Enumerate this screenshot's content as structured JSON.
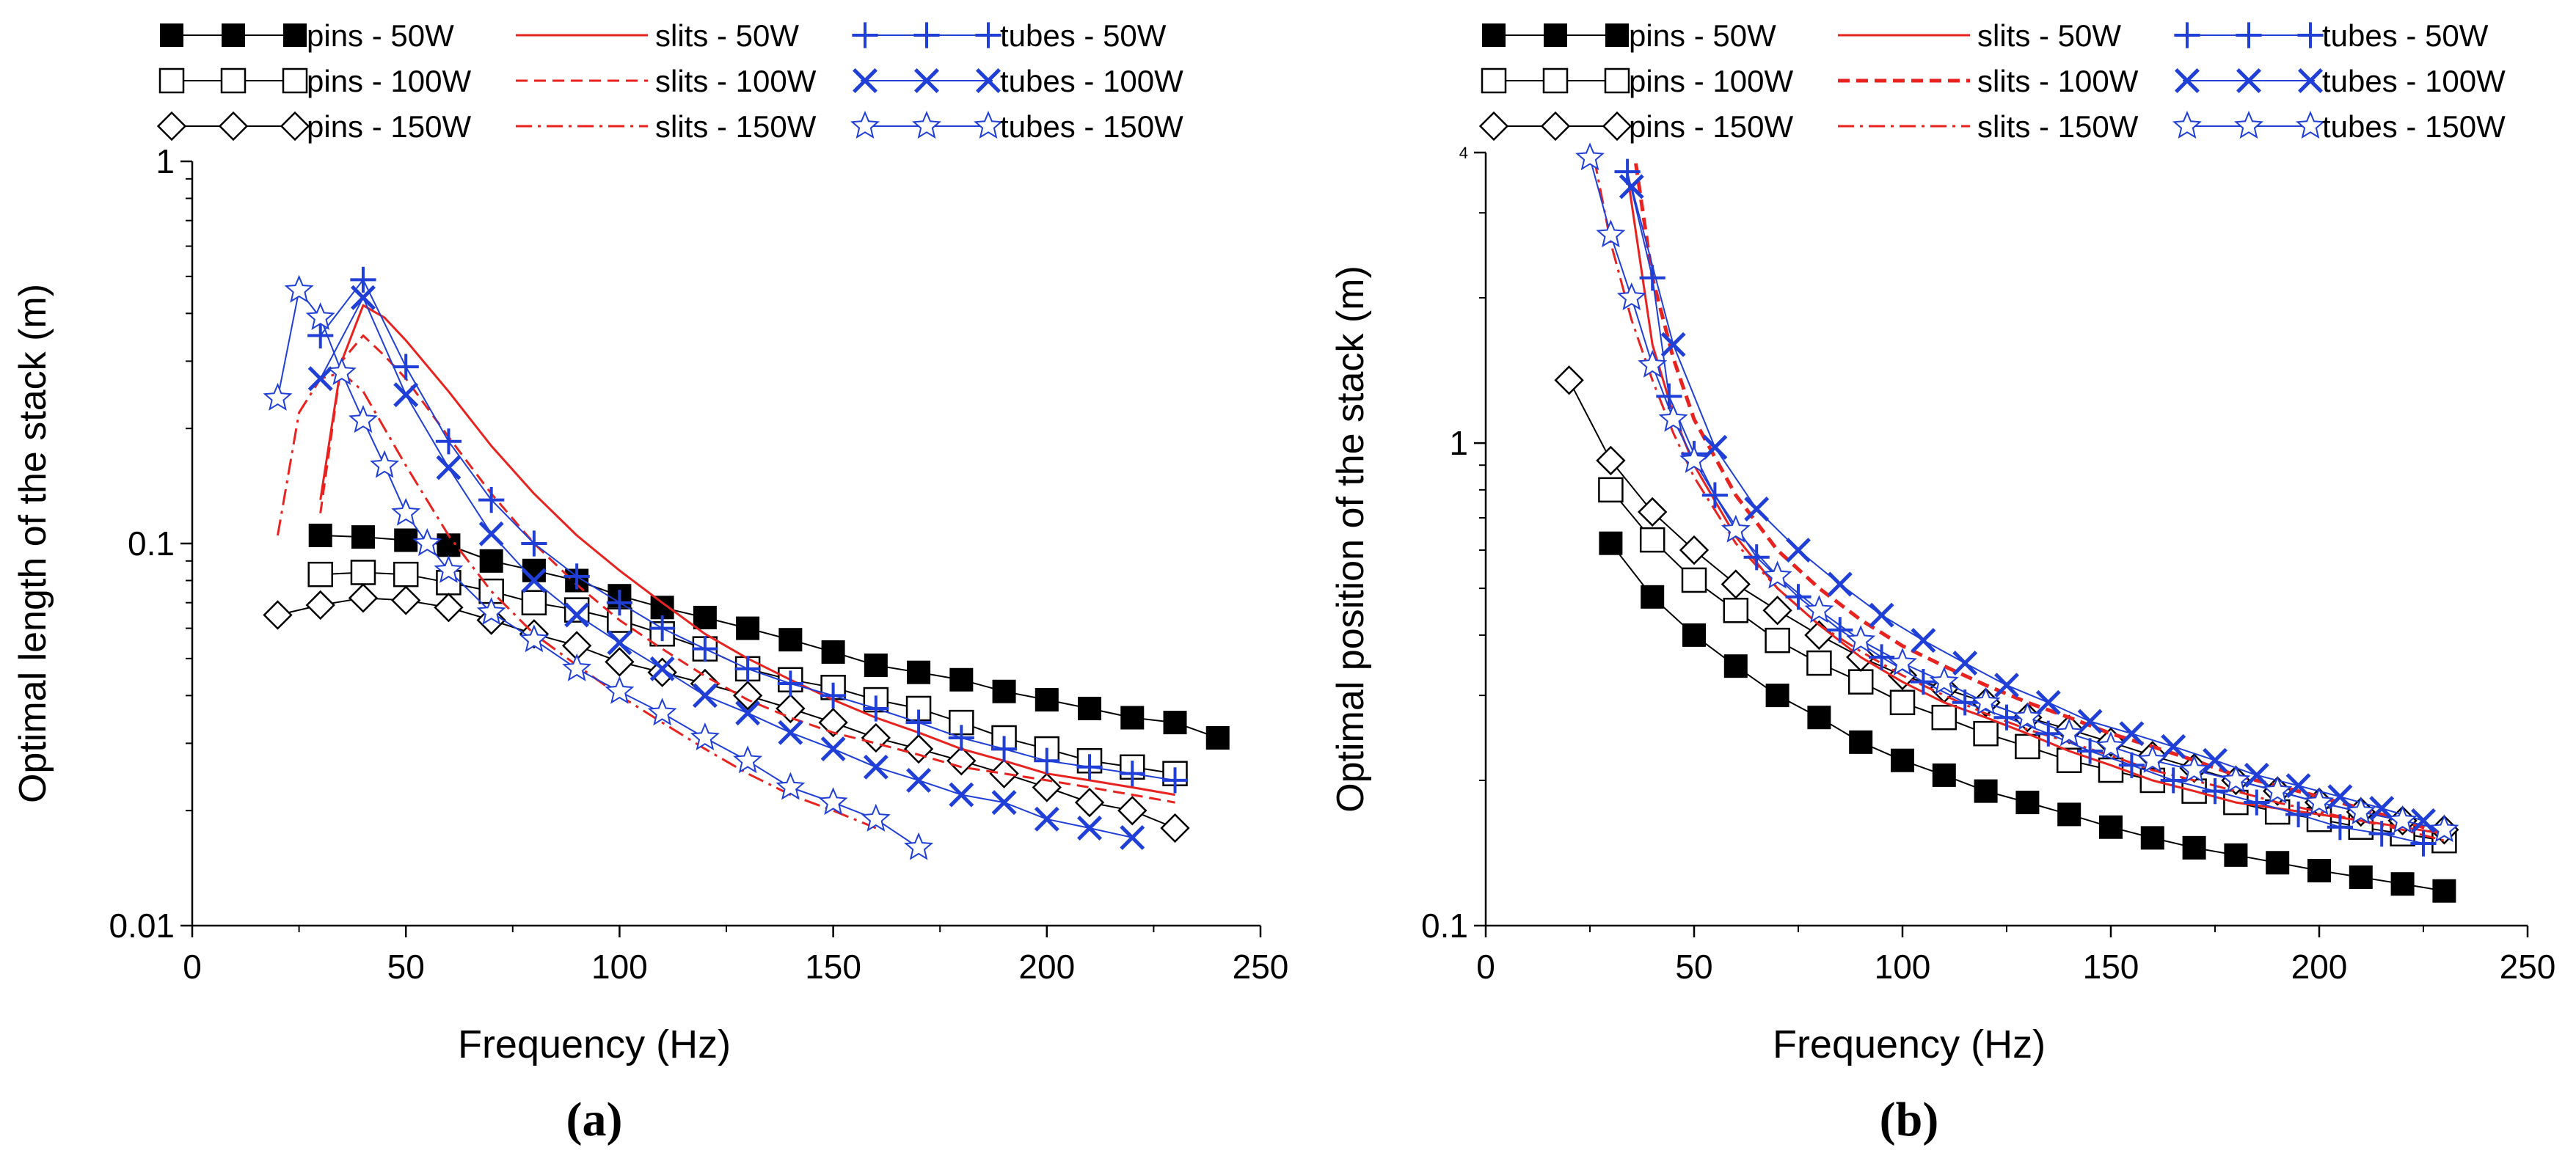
{
  "chart_data": [
    {
      "type": "line",
      "panel_label": "(a)",
      "xlabel": "Frequency (Hz)",
      "ylabel": "Optimal length of the stack (m)",
      "xlim": [
        0,
        250
      ],
      "ylim": [
        0.01,
        1
      ],
      "yscale": "log",
      "x_ticks": [
        "0",
        "50",
        "100",
        "150",
        "200",
        "250"
      ],
      "y_ticks": [
        "0.01",
        "0.1",
        "1"
      ],
      "legend_position": "top",
      "series": [
        {
          "name": "pins - 50W",
          "color": "#000000",
          "marker": "filled-square",
          "x": [
            30,
            40,
            50,
            60,
            70,
            80,
            90,
            100,
            110,
            120,
            130,
            140,
            150,
            160,
            170,
            180,
            190,
            200,
            210,
            220,
            230,
            240
          ],
          "y": [
            0.105,
            0.104,
            0.102,
            0.099,
            0.09,
            0.085,
            0.08,
            0.073,
            0.068,
            0.064,
            0.06,
            0.056,
            0.052,
            0.048,
            0.046,
            0.044,
            0.041,
            0.039,
            0.037,
            0.035,
            0.034,
            0.031
          ]
        },
        {
          "name": "pins - 100W",
          "color": "#000000",
          "marker": "open-square",
          "x": [
            30,
            40,
            50,
            60,
            70,
            80,
            90,
            100,
            110,
            120,
            130,
            140,
            150,
            160,
            170,
            180,
            190,
            200,
            210,
            220,
            230
          ],
          "y": [
            0.083,
            0.084,
            0.083,
            0.079,
            0.075,
            0.07,
            0.067,
            0.063,
            0.058,
            0.053,
            0.047,
            0.044,
            0.042,
            0.039,
            0.037,
            0.034,
            0.031,
            0.029,
            0.027,
            0.026,
            0.025
          ]
        },
        {
          "name": "pins - 150W",
          "color": "#000000",
          "marker": "open-diamond",
          "x": [
            20,
            30,
            40,
            50,
            60,
            70,
            80,
            90,
            100,
            110,
            120,
            130,
            140,
            150,
            160,
            170,
            180,
            190,
            200,
            210,
            220,
            230
          ],
          "y": [
            0.065,
            0.069,
            0.072,
            0.071,
            0.068,
            0.063,
            0.058,
            0.054,
            0.049,
            0.046,
            0.043,
            0.04,
            0.037,
            0.034,
            0.031,
            0.029,
            0.027,
            0.025,
            0.023,
            0.021,
            0.02,
            0.018
          ]
        },
        {
          "name": "slits - 50W",
          "color": "#e8231f",
          "marker": "none",
          "dash": "solid",
          "x": [
            30,
            35,
            40,
            45,
            50,
            60,
            70,
            80,
            90,
            100,
            110,
            120,
            130,
            140,
            150,
            160,
            170,
            180,
            190,
            200,
            210,
            220,
            230
          ],
          "y": [
            0.13,
            0.3,
            0.42,
            0.39,
            0.34,
            0.25,
            0.18,
            0.135,
            0.105,
            0.085,
            0.07,
            0.058,
            0.05,
            0.044,
            0.039,
            0.035,
            0.032,
            0.029,
            0.027,
            0.025,
            0.024,
            0.023,
            0.022
          ]
        },
        {
          "name": "slits - 100W",
          "color": "#e8231f",
          "marker": "none",
          "dash": "dashed",
          "x": [
            30,
            35,
            40,
            45,
            50,
            60,
            70,
            80,
            90,
            100,
            110,
            120,
            130,
            140,
            150,
            160,
            170,
            180,
            190,
            200,
            210,
            220,
            230
          ],
          "y": [
            0.12,
            0.3,
            0.35,
            0.31,
            0.27,
            0.19,
            0.135,
            0.1,
            0.078,
            0.063,
            0.053,
            0.045,
            0.039,
            0.035,
            0.032,
            0.03,
            0.028,
            0.026,
            0.025,
            0.024,
            0.023,
            0.022,
            0.021
          ]
        },
        {
          "name": "slits - 150W",
          "color": "#e8231f",
          "marker": "none",
          "dash": "dashdot",
          "x": [
            20,
            25,
            30,
            35,
            40,
            45,
            50,
            60,
            70,
            80,
            90,
            100,
            110,
            120,
            130,
            140,
            150,
            160
          ],
          "y": [
            0.105,
            0.22,
            0.27,
            0.28,
            0.25,
            0.2,
            0.16,
            0.105,
            0.075,
            0.058,
            0.048,
            0.04,
            0.034,
            0.029,
            0.025,
            0.022,
            0.02,
            0.018
          ]
        },
        {
          "name": "tubes - 50W",
          "color": "#1f3fd6",
          "marker": "plus",
          "x": [
            30,
            40,
            50,
            60,
            70,
            80,
            90,
            100,
            110,
            120,
            130,
            140,
            150,
            160,
            170,
            180,
            190,
            200,
            210,
            220,
            230
          ],
          "y": [
            0.35,
            0.49,
            0.29,
            0.185,
            0.13,
            0.1,
            0.082,
            0.07,
            0.06,
            0.053,
            0.047,
            0.043,
            0.04,
            0.037,
            0.034,
            0.031,
            0.029,
            0.027,
            0.026,
            0.025,
            0.024
          ]
        },
        {
          "name": "tubes - 100W",
          "color": "#1f3fd6",
          "marker": "cross",
          "x": [
            30,
            40,
            50,
            60,
            70,
            80,
            90,
            100,
            110,
            120,
            130,
            140,
            150,
            160,
            170,
            180,
            190,
            200,
            210,
            220
          ],
          "y": [
            0.27,
            0.44,
            0.245,
            0.158,
            0.106,
            0.08,
            0.065,
            0.055,
            0.047,
            0.04,
            0.036,
            0.032,
            0.029,
            0.026,
            0.024,
            0.022,
            0.021,
            0.019,
            0.018,
            0.017
          ]
        },
        {
          "name": "tubes - 150W",
          "color": "#1f3fd6",
          "marker": "star",
          "x": [
            20,
            25,
            30,
            35,
            40,
            45,
            50,
            55,
            60,
            70,
            80,
            90,
            100,
            110,
            120,
            130,
            140,
            150,
            160,
            170
          ],
          "y": [
            0.24,
            0.46,
            0.39,
            0.28,
            0.21,
            0.16,
            0.12,
            0.1,
            0.085,
            0.066,
            0.056,
            0.047,
            0.041,
            0.036,
            0.031,
            0.027,
            0.023,
            0.021,
            0.019,
            0.016
          ]
        }
      ]
    },
    {
      "type": "line",
      "panel_label": "(b)",
      "xlabel": "Frequency (Hz)",
      "ylabel": "Optimal position of the stack (m)",
      "xlim": [
        0,
        250
      ],
      "ylim": [
        0.1,
        4
      ],
      "yscale": "log",
      "x_ticks": [
        "0",
        "50",
        "100",
        "150",
        "200",
        "250"
      ],
      "y_ticks": [
        "0.1",
        "1",
        "4"
      ],
      "legend_position": "top",
      "series": [
        {
          "name": "pins - 50W",
          "color": "#000000",
          "marker": "filled-square",
          "x": [
            30,
            40,
            50,
            60,
            70,
            80,
            90,
            100,
            110,
            120,
            130,
            140,
            150,
            160,
            170,
            180,
            190,
            200,
            210,
            220,
            230
          ],
          "y": [
            0.62,
            0.48,
            0.4,
            0.345,
            0.3,
            0.27,
            0.24,
            0.22,
            0.205,
            0.19,
            0.18,
            0.17,
            0.16,
            0.152,
            0.145,
            0.14,
            0.135,
            0.13,
            0.126,
            0.122,
            0.118
          ]
        },
        {
          "name": "pins - 100W",
          "color": "#000000",
          "marker": "open-square",
          "x": [
            30,
            40,
            50,
            60,
            70,
            80,
            90,
            100,
            110,
            120,
            130,
            140,
            150,
            160,
            170,
            180,
            190,
            200,
            210,
            220,
            230
          ],
          "y": [
            0.8,
            0.63,
            0.52,
            0.45,
            0.39,
            0.35,
            0.32,
            0.29,
            0.27,
            0.25,
            0.235,
            0.22,
            0.21,
            0.2,
            0.19,
            0.18,
            0.172,
            0.166,
            0.16,
            0.155,
            0.15
          ]
        },
        {
          "name": "pins - 150W",
          "color": "#000000",
          "marker": "open-diamond",
          "x": [
            20,
            30,
            40,
            50,
            60,
            70,
            80,
            90,
            100,
            110,
            120,
            130,
            140,
            150,
            160,
            170,
            180,
            190,
            200,
            210,
            220,
            230
          ],
          "y": [
            1.35,
            0.92,
            0.72,
            0.6,
            0.51,
            0.45,
            0.4,
            0.36,
            0.33,
            0.31,
            0.29,
            0.27,
            0.255,
            0.24,
            0.225,
            0.212,
            0.2,
            0.19,
            0.18,
            0.172,
            0.165,
            0.158
          ]
        },
        {
          "name": "slits - 50W",
          "color": "#e8231f",
          "marker": "none",
          "dash": "solid",
          "x": [
            34,
            40,
            45,
            50,
            60,
            70,
            80,
            90,
            100,
            110,
            120,
            130,
            140,
            150,
            160,
            170,
            180,
            190,
            200,
            210,
            220,
            230
          ],
          "y": [
            3.6,
            1.6,
            1.15,
            0.9,
            0.64,
            0.5,
            0.42,
            0.36,
            0.32,
            0.29,
            0.27,
            0.25,
            0.23,
            0.215,
            0.2,
            0.19,
            0.18,
            0.175,
            0.17,
            0.165,
            0.16,
            0.155
          ]
        },
        {
          "name": "slits - 100W",
          "color": "#e8231f",
          "marker": "none",
          "dash": "dashed",
          "x": [
            36,
            40,
            45,
            50,
            60,
            70,
            80,
            90,
            100,
            110,
            120,
            130,
            140,
            150,
            160,
            170,
            180,
            190,
            200,
            210,
            220,
            230
          ],
          "y": [
            3.8,
            2.2,
            1.5,
            1.12,
            0.78,
            0.6,
            0.5,
            0.43,
            0.38,
            0.345,
            0.315,
            0.29,
            0.27,
            0.25,
            0.235,
            0.22,
            0.205,
            0.195,
            0.185,
            0.175,
            0.165,
            0.155
          ]
        },
        {
          "name": "slits - 150W",
          "color": "#e8231f",
          "marker": "none",
          "dash": "dashdot",
          "x": [
            26,
            30,
            35,
            40,
            45,
            50,
            60,
            70,
            80,
            90,
            100,
            110,
            120,
            130,
            140,
            150,
            160,
            170,
            180,
            190,
            200,
            210,
            220,
            230
          ],
          "y": [
            3.9,
            2.6,
            1.8,
            1.35,
            1.05,
            0.85,
            0.62,
            0.5,
            0.42,
            0.37,
            0.33,
            0.3,
            0.275,
            0.255,
            0.24,
            0.225,
            0.21,
            0.2,
            0.19,
            0.18,
            0.172,
            0.165,
            0.158,
            0.15
          ]
        },
        {
          "name": "tubes - 50W",
          "color": "#1f3fd6",
          "marker": "plus",
          "x": [
            34,
            40,
            44,
            50,
            55,
            65,
            75,
            85,
            95,
            105,
            115,
            125,
            135,
            145,
            155,
            165,
            175,
            185,
            195,
            205,
            215,
            225
          ],
          "y": [
            3.65,
            2.2,
            1.25,
            0.95,
            0.78,
            0.58,
            0.48,
            0.41,
            0.36,
            0.32,
            0.29,
            0.27,
            0.25,
            0.23,
            0.215,
            0.2,
            0.19,
            0.18,
            0.17,
            0.16,
            0.155,
            0.148
          ]
        },
        {
          "name": "tubes - 100W",
          "color": "#1f3fd6",
          "marker": "cross",
          "x": [
            35,
            45,
            55,
            65,
            75,
            85,
            95,
            105,
            115,
            125,
            135,
            145,
            155,
            165,
            175,
            185,
            195,
            205,
            215,
            225
          ],
          "y": [
            3.4,
            1.6,
            0.98,
            0.73,
            0.6,
            0.51,
            0.44,
            0.39,
            0.35,
            0.315,
            0.29,
            0.265,
            0.25,
            0.235,
            0.22,
            0.205,
            0.195,
            0.185,
            0.175,
            0.165
          ]
        },
        {
          "name": "tubes - 150W",
          "color": "#1f3fd6",
          "marker": "star",
          "x": [
            25,
            30,
            35,
            40,
            45,
            50,
            60,
            70,
            80,
            90,
            100,
            110,
            120,
            130,
            140,
            150,
            160,
            170,
            180,
            190,
            200,
            210,
            220,
            230
          ],
          "y": [
            3.9,
            2.7,
            2.0,
            1.45,
            1.12,
            0.92,
            0.66,
            0.53,
            0.45,
            0.39,
            0.35,
            0.32,
            0.29,
            0.27,
            0.25,
            0.235,
            0.22,
            0.21,
            0.2,
            0.19,
            0.18,
            0.172,
            0.165,
            0.158
          ]
        }
      ]
    }
  ]
}
